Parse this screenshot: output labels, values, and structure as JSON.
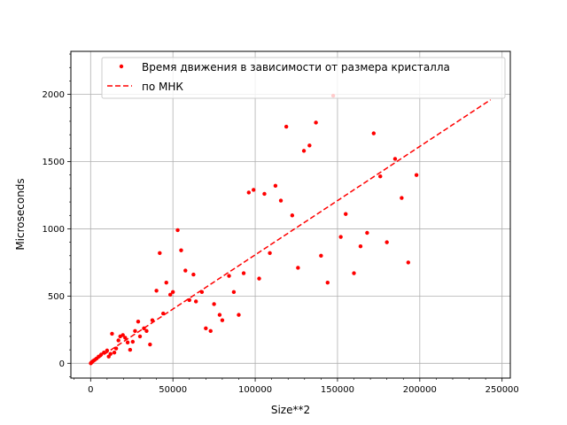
{
  "chart_data": {
    "type": "scatter",
    "xlabel": "Size**2",
    "ylabel": "Microseconds",
    "xlim": [
      -12000,
      255000
    ],
    "ylim": [
      -110,
      2320
    ],
    "x_ticks": [
      0,
      50000,
      100000,
      150000,
      200000,
      250000
    ],
    "x_tick_labels": [
      "0",
      "50000",
      "100000",
      "150000",
      "200000",
      "250000"
    ],
    "y_ticks": [
      0,
      500,
      1000,
      1500,
      2000
    ],
    "y_tick_labels": [
      "0",
      "500",
      "1000",
      "1500",
      "2000"
    ],
    "grid": true,
    "legend_position": "top-right",
    "colors": {
      "series": "#ff0000",
      "grid": "#b0b0b0",
      "axis": "#000000"
    },
    "series": [
      {
        "name": "Время движения в зависимости от размера кристалла",
        "kind": "scatter",
        "points": [
          [
            100,
            0
          ],
          [
            400,
            5
          ],
          [
            900,
            10
          ],
          [
            1600,
            18
          ],
          [
            2500,
            25
          ],
          [
            3600,
            35
          ],
          [
            4900,
            50
          ],
          [
            6400,
            65
          ],
          [
            8100,
            80
          ],
          [
            10000,
            95
          ],
          [
            11000,
            50
          ],
          [
            12100,
            70
          ],
          [
            13000,
            220
          ],
          [
            14400,
            80
          ],
          [
            15500,
            110
          ],
          [
            16900,
            170
          ],
          [
            18000,
            200
          ],
          [
            19600,
            210
          ],
          [
            21000,
            190
          ],
          [
            22500,
            155
          ],
          [
            24000,
            100
          ],
          [
            25600,
            160
          ],
          [
            27000,
            240
          ],
          [
            28900,
            310
          ],
          [
            30000,
            200
          ],
          [
            32400,
            260
          ],
          [
            34000,
            240
          ],
          [
            36100,
            140
          ],
          [
            37500,
            320
          ],
          [
            40000,
            540
          ],
          [
            42000,
            820
          ],
          [
            44100,
            370
          ],
          [
            46000,
            600
          ],
          [
            48400,
            510
          ],
          [
            50000,
            530
          ],
          [
            52900,
            990
          ],
          [
            55000,
            840
          ],
          [
            57600,
            690
          ],
          [
            60000,
            470
          ],
          [
            62500,
            660
          ],
          [
            64000,
            460
          ],
          [
            67600,
            530
          ],
          [
            70000,
            260
          ],
          [
            72900,
            240
          ],
          [
            75000,
            440
          ],
          [
            78400,
            360
          ],
          [
            80000,
            320
          ],
          [
            84100,
            650
          ],
          [
            87000,
            530
          ],
          [
            90000,
            360
          ],
          [
            93000,
            670
          ],
          [
            96100,
            1270
          ],
          [
            99000,
            1290
          ],
          [
            102400,
            630
          ],
          [
            105600,
            1260
          ],
          [
            108900,
            820
          ],
          [
            112300,
            1320
          ],
          [
            115600,
            1210
          ],
          [
            122500,
            1100
          ],
          [
            126000,
            710
          ],
          [
            129600,
            1580
          ],
          [
            133000,
            1620
          ],
          [
            136900,
            1790
          ],
          [
            140000,
            800
          ],
          [
            144000,
            600
          ],
          [
            147400,
            1990
          ],
          [
            152000,
            940
          ],
          [
            155000,
            1110
          ],
          [
            160000,
            670
          ],
          [
            164000,
            870
          ],
          [
            168000,
            970
          ],
          [
            172000,
            1710
          ],
          [
            176000,
            1390
          ],
          [
            180000,
            900
          ],
          [
            185000,
            1520
          ],
          [
            189000,
            1230
          ],
          [
            193000,
            750
          ],
          [
            198000,
            1400
          ],
          [
            118900,
            1760
          ]
        ]
      },
      {
        "name": "по МНК",
        "kind": "line",
        "style": "dashed",
        "points": [
          [
            0,
            0
          ],
          [
            243000,
            1960
          ]
        ]
      }
    ]
  }
}
